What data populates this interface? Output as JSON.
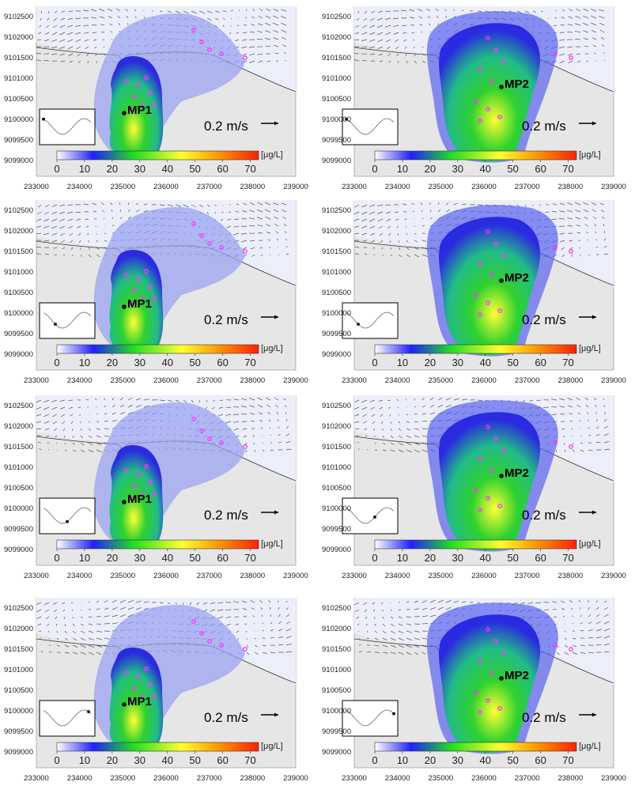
{
  "units_label": "[μg/L]",
  "scale_label": "0.2 m/s",
  "colorbar_ticks": [
    "0",
    "10",
    "20",
    "30",
    "40",
    "50",
    "60",
    "70"
  ],
  "x_ticks": [
    "233000",
    "234000",
    "235000",
    "236000",
    "237000",
    "238000",
    "239000"
  ],
  "y_ticks": [
    "9102500",
    "9102000",
    "9101500",
    "9101000",
    "9100500",
    "9100000",
    "9099500",
    "9099000"
  ],
  "colors": {
    "map_background": "#e6e6e6",
    "land_gray": "#d9d9d9",
    "plume_low": "#2a2ae0",
    "plume_mid": "#2fd12f",
    "plume_high": "#ffff33",
    "vector_color": "#555555",
    "source_marker": "#ff33ff"
  },
  "panels": [
    {
      "label": "MP1",
      "tide_phase": 0.0
    },
    {
      "label": "MP2",
      "tide_phase": 0.0
    },
    {
      "label": "MP1",
      "tide_phase": 0.25
    },
    {
      "label": "MP2",
      "tide_phase": 0.25
    },
    {
      "label": "MP1",
      "tide_phase": 0.5
    },
    {
      "label": "MP2",
      "tide_phase": 0.6
    },
    {
      "label": "MP1",
      "tide_phase": 0.95
    },
    {
      "label": "MP2",
      "tide_phase": 1.0
    }
  ]
}
